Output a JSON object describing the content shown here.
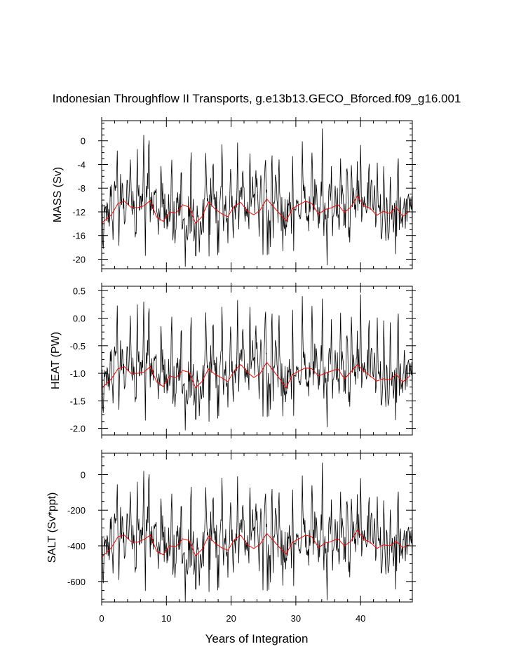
{
  "title": "Indonesian Throughflow II Transports, g.e13b13.GECO_Bforced.f09_g16.001",
  "x_axis": {
    "label": "Years of Integration",
    "range": [
      0,
      48
    ],
    "ticks": [
      "0",
      "10",
      "20",
      "30",
      "40"
    ],
    "tick_values": [
      0,
      10,
      20,
      30,
      40
    ]
  },
  "colors": {
    "monthly": "#000000",
    "annual_mean": "#ff0000",
    "frame": "#000000",
    "background": "#ffffff"
  },
  "chart_data": [
    {
      "type": "line",
      "ylabel": "MASS (Sv)",
      "ylim": [
        -21.6,
        3.4
      ],
      "yticks": [
        0,
        -4,
        -8,
        -12,
        -16,
        -20
      ],
      "ytick_labels": [
        "0",
        "-4",
        "-8",
        "-12",
        "-16",
        "-20"
      ],
      "xlim": [
        0,
        48
      ],
      "monthly_stats": {
        "mean": -11.8,
        "amplitude": 6.9,
        "min": -21.6,
        "max": 3.4,
        "samples_per_year": 12
      },
      "annual_mean_x": [
        0.1,
        1.5,
        2.5,
        3.5,
        4.5,
        5.5,
        6.5,
        7.5,
        8.5,
        9.5,
        10.5,
        11.5,
        12.5,
        13.5,
        14.5,
        15.5,
        16.5,
        17.5,
        18.5,
        19.5,
        20.5,
        21.5,
        22.5,
        23.5,
        24.5,
        25.5,
        26.5,
        27.5,
        28.5,
        29.5,
        30.5,
        31.5,
        32.5,
        33.5,
        34.5,
        35.5,
        36.5,
        37.5,
        38.5,
        39.5,
        40.5,
        41.5,
        42.5,
        43.5,
        44.5,
        45.5,
        46.5,
        47.5
      ],
      "annual_mean": [
        -13.8,
        -12.5,
        -10.6,
        -10.2,
        -11.2,
        -11.3,
        -11.0,
        -10.1,
        -12.9,
        -13.6,
        -12.0,
        -12.2,
        -10.8,
        -11.2,
        -13.9,
        -12.8,
        -10.3,
        -11.5,
        -12.3,
        -12.8,
        -11.0,
        -10.4,
        -11.9,
        -12.5,
        -11.7,
        -9.8,
        -11.1,
        -12.3,
        -13.5,
        -11.4,
        -10.8,
        -10.2,
        -10.6,
        -12.4,
        -11.6,
        -11.3,
        -10.8,
        -12.1,
        -11.2,
        -9.3,
        -11.0,
        -11.4,
        -12.6,
        -11.9,
        -12.3,
        -11.2,
        -12.8,
        -11.9
      ],
      "spikes_x": [
        2.4,
        4.4,
        5.5,
        6.5,
        7.3,
        9.2,
        10.8,
        12.3,
        13.8,
        16.1,
        17.2,
        18.6,
        19.9,
        21.0,
        21.8,
        22.9,
        23.8,
        25.3,
        26.3,
        27.4,
        29.5,
        31.0,
        32.5,
        34.1,
        35.5,
        36.9,
        38.6,
        40.0,
        41.3,
        42.6,
        43.6,
        44.6,
        45.8,
        46.8
      ],
      "spikes_y": [
        -0.3,
        -2.7,
        -1.4,
        1.0,
        3.4,
        -1.3,
        -0.3,
        -2.0,
        1.8,
        -0.4,
        -0.5,
        0.7,
        -4.0,
        -0.3,
        -2.3,
        -1.0,
        -3.7,
        -1.7,
        -0.5,
        -1.8,
        -2.6,
        -0.1,
        -2.0,
        3.4,
        -4.3,
        -1.3,
        -2.3,
        -0.7,
        -1.3,
        -3.1,
        -2.8,
        -5.4,
        -1.1,
        -8.4
      ]
    },
    {
      "type": "line",
      "ylabel": "HEAT (PW)",
      "ylim": [
        -2.12,
        0.58
      ],
      "yticks": [
        0.5,
        0.0,
        -0.5,
        -1.0,
        -1.5,
        -2.0
      ],
      "ytick_labels": [
        "0.5",
        "0.0",
        "-0.5",
        "-1.0",
        "-1.5",
        "-2.0"
      ],
      "xlim": [
        0,
        48
      ],
      "monthly_stats": {
        "mean": -1.06,
        "amplitude": 0.72,
        "min": -2.12,
        "max": 0.58,
        "samples_per_year": 12
      },
      "annual_mean_x": [
        0.1,
        1.5,
        2.5,
        3.5,
        4.5,
        5.5,
        6.5,
        7.5,
        8.5,
        9.5,
        10.5,
        11.5,
        12.5,
        13.5,
        14.5,
        15.5,
        16.5,
        17.5,
        18.5,
        19.5,
        20.5,
        21.5,
        22.5,
        23.5,
        24.5,
        25.5,
        26.5,
        27.5,
        28.5,
        29.5,
        30.5,
        31.5,
        32.5,
        33.5,
        34.5,
        35.5,
        36.5,
        37.5,
        38.5,
        39.5,
        40.5,
        41.5,
        42.5,
        43.5,
        44.5,
        45.5,
        46.5,
        47.5
      ],
      "annual_mean": [
        -1.26,
        -1.1,
        -0.92,
        -0.88,
        -1.0,
        -1.0,
        -0.98,
        -0.88,
        -1.16,
        -1.24,
        -1.05,
        -1.08,
        -0.95,
        -0.98,
        -1.26,
        -1.15,
        -0.92,
        -1.02,
        -1.08,
        -1.15,
        -0.95,
        -0.84,
        -0.98,
        -1.08,
        -1.0,
        -0.8,
        -0.95,
        -1.1,
        -1.26,
        -1.02,
        -0.96,
        -0.9,
        -0.92,
        -1.05,
        -1.0,
        -0.96,
        -0.92,
        -1.1,
        -0.98,
        -0.84,
        -0.96,
        -1.05,
        -1.14,
        -1.1,
        -1.12,
        -1.02,
        -1.16,
        -1.06
      ],
      "spikes_x": [
        2.4,
        4.4,
        5.5,
        6.5,
        7.3,
        9.2,
        10.8,
        12.3,
        13.8,
        16.1,
        17.2,
        18.6,
        19.9,
        21.0,
        21.8,
        22.9,
        23.8,
        25.3,
        26.3,
        27.4,
        29.5,
        31.0,
        32.5,
        34.1,
        35.5,
        36.9,
        38.6,
        40.0,
        41.3,
        42.6,
        43.6,
        44.6,
        45.8,
        46.8
      ],
      "spikes_y": [
        0.4,
        0.12,
        0.25,
        0.3,
        0.53,
        0.2,
        0.38,
        0.18,
        0.42,
        0.3,
        0.3,
        0.35,
        -0.05,
        0.33,
        0.12,
        0.35,
        0.05,
        0.35,
        0.33,
        0.22,
        0.15,
        0.4,
        0.22,
        0.48,
        -0.02,
        0.3,
        0.25,
        0.43,
        0.3,
        0.1,
        0.15,
        0.05,
        0.35,
        -0.3
      ]
    },
    {
      "type": "line",
      "ylabel": "SALT (Sv*ppt)",
      "ylim": [
        -715,
        120
      ],
      "yticks": [
        0,
        -200,
        -400,
        -600
      ],
      "ytick_labels": [
        "0",
        "-200",
        "-400",
        "-600"
      ],
      "xlim": [
        0,
        48
      ],
      "monthly_stats": {
        "mean": -400,
        "amplitude": 235,
        "min": -715,
        "max": 120,
        "samples_per_year": 12
      },
      "annual_mean_x": [
        0.1,
        1.5,
        2.5,
        3.5,
        4.5,
        5.5,
        6.5,
        7.5,
        8.5,
        9.5,
        10.5,
        11.5,
        12.5,
        13.5,
        14.5,
        15.5,
        16.5,
        17.5,
        18.5,
        19.5,
        20.5,
        21.5,
        22.5,
        23.5,
        24.5,
        25.5,
        26.5,
        27.5,
        28.5,
        29.5,
        30.5,
        31.5,
        32.5,
        33.5,
        34.5,
        35.5,
        36.5,
        37.5,
        38.5,
        39.5,
        40.5,
        41.5,
        42.5,
        43.5,
        44.5,
        45.5,
        46.5,
        47.5
      ],
      "annual_mean": [
        -460,
        -410,
        -350,
        -340,
        -375,
        -380,
        -365,
        -340,
        -430,
        -450,
        -400,
        -405,
        -360,
        -370,
        -455,
        -420,
        -345,
        -385,
        -410,
        -425,
        -365,
        -340,
        -395,
        -415,
        -390,
        -330,
        -370,
        -410,
        -445,
        -380,
        -360,
        -340,
        -350,
        -410,
        -385,
        -375,
        -360,
        -400,
        -375,
        -310,
        -365,
        -380,
        -415,
        -395,
        -400,
        -375,
        -410,
        -395
      ],
      "spikes_x": [
        2.4,
        4.4,
        5.5,
        6.5,
        7.3,
        9.2,
        10.8,
        12.3,
        13.8,
        16.1,
        17.2,
        18.6,
        19.9,
        21.0,
        21.8,
        22.9,
        23.8,
        25.3,
        26.3,
        27.4,
        29.5,
        31.0,
        32.5,
        34.1,
        35.5,
        36.9,
        38.6,
        40.0,
        41.3,
        42.6,
        43.6,
        44.6,
        45.8,
        46.8
      ],
      "spikes_y": [
        -10,
        -80,
        -40,
        20,
        115,
        -35,
        -10,
        -65,
        55,
        -15,
        -15,
        25,
        -130,
        -10,
        -80,
        -35,
        -120,
        -55,
        -15,
        -55,
        -85,
        -5,
        -60,
        110,
        -140,
        -40,
        -75,
        -20,
        -40,
        -105,
        -95,
        -175,
        -35,
        -270
      ]
    }
  ]
}
